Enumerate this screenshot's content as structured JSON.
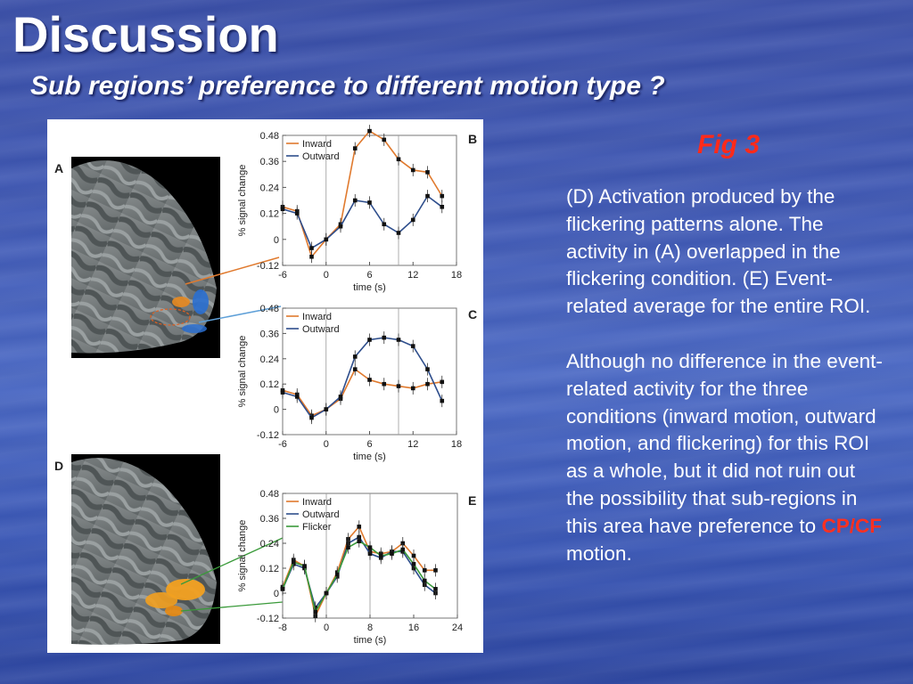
{
  "slide": {
    "title": "Discussion",
    "subtitle": "Sub regions’ preference to different motion type ?",
    "fig_label": "Fig 3",
    "paragraph1": "(D) Activation produced by the flickering patterns alone. The activity in (A) overlapped in the flickering condition. (E) Event-related average for the entire ROI.",
    "paragraph2_main": "Although no difference in the event-related activity for the three conditions (inward motion, outward motion, and flickering) for this ROI as a whole, but it did not ruin out the possibility that sub-regions in this area have preference to",
    "paragraph2_highlight": "CP/CF",
    "paragraph2_end": " motion."
  },
  "figure": {
    "panel_letters": [
      "A",
      "B",
      "C",
      "D",
      "E"
    ],
    "ylabel": "% signal change",
    "xlabel": "time (s)",
    "ytick_labels": [
      "0.48",
      "0.36",
      "0.24",
      "0.12",
      "0",
      "-0.12"
    ],
    "colors": {
      "inward": "#e07a2e",
      "outward": "#2e4e8c",
      "flicker": "#3a9a3a"
    },
    "chart_data": [
      {
        "panel": "B",
        "type": "line",
        "x": [
          -6,
          -4,
          -2,
          0,
          2,
          4,
          6,
          8,
          10,
          12,
          14,
          16
        ],
        "xticks": [
          -6,
          0,
          6,
          12,
          18
        ],
        "xlim": [
          -6,
          18
        ],
        "ylim": [
          -0.12,
          0.48
        ],
        "yticks": [
          0.48,
          0.36,
          0.24,
          0.12,
          0,
          -0.12
        ],
        "legend": "top-left",
        "series": [
          {
            "name": "Inward",
            "values": [
              0.15,
              0.13,
              -0.08,
              0.0,
              0.07,
              0.42,
              0.5,
              0.46,
              0.37,
              0.32,
              0.31,
              0.2
            ]
          },
          {
            "name": "Outward",
            "values": [
              0.14,
              0.12,
              -0.04,
              0.0,
              0.06,
              0.18,
              0.17,
              0.07,
              0.03,
              0.09,
              0.2,
              0.15
            ]
          }
        ]
      },
      {
        "panel": "C",
        "type": "line",
        "x": [
          -6,
          -4,
          -2,
          0,
          2,
          4,
          6,
          8,
          10,
          12,
          14,
          16
        ],
        "xticks": [
          -6,
          0,
          6,
          12,
          18
        ],
        "xlim": [
          -6,
          18
        ],
        "ylim": [
          -0.12,
          0.48
        ],
        "yticks": [
          0.48,
          0.36,
          0.24,
          0.12,
          0,
          -0.12
        ],
        "legend": "top-left",
        "series": [
          {
            "name": "Inward",
            "values": [
              0.09,
              0.07,
              -0.03,
              0.0,
              0.05,
              0.19,
              0.14,
              0.12,
              0.11,
              0.1,
              0.12,
              0.13
            ]
          },
          {
            "name": "Outward",
            "values": [
              0.08,
              0.06,
              -0.04,
              0.0,
              0.06,
              0.25,
              0.33,
              0.34,
              0.33,
              0.3,
              0.19,
              0.04
            ]
          }
        ]
      },
      {
        "panel": "E",
        "type": "line",
        "x": [
          -8,
          -6,
          -4,
          -2,
          0,
          2,
          4,
          6,
          8,
          10,
          12,
          14,
          16,
          18,
          20
        ],
        "xticks": [
          -8,
          0,
          8,
          16,
          24
        ],
        "xlim": [
          -8,
          24
        ],
        "ylim": [
          -0.12,
          0.48
        ],
        "yticks": [
          0.48,
          0.36,
          0.24,
          0.12,
          0,
          -0.12
        ],
        "legend": "top-left",
        "series": [
          {
            "name": "Inward",
            "values": [
              0.03,
              0.16,
              0.13,
              -0.11,
              0.0,
              0.1,
              0.26,
              0.32,
              0.2,
              0.19,
              0.2,
              0.24,
              0.18,
              0.11,
              0.11
            ]
          },
          {
            "name": "Outward",
            "values": [
              0.02,
              0.14,
              0.12,
              -0.07,
              0.0,
              0.08,
              0.24,
              0.27,
              0.19,
              0.17,
              0.2,
              0.2,
              0.12,
              0.04,
              0.0
            ]
          },
          {
            "name": "Flicker",
            "values": [
              0.02,
              0.15,
              0.13,
              -0.09,
              0.0,
              0.09,
              0.22,
              0.25,
              0.22,
              0.18,
              0.19,
              0.21,
              0.14,
              0.06,
              0.02
            ]
          }
        ]
      }
    ]
  }
}
